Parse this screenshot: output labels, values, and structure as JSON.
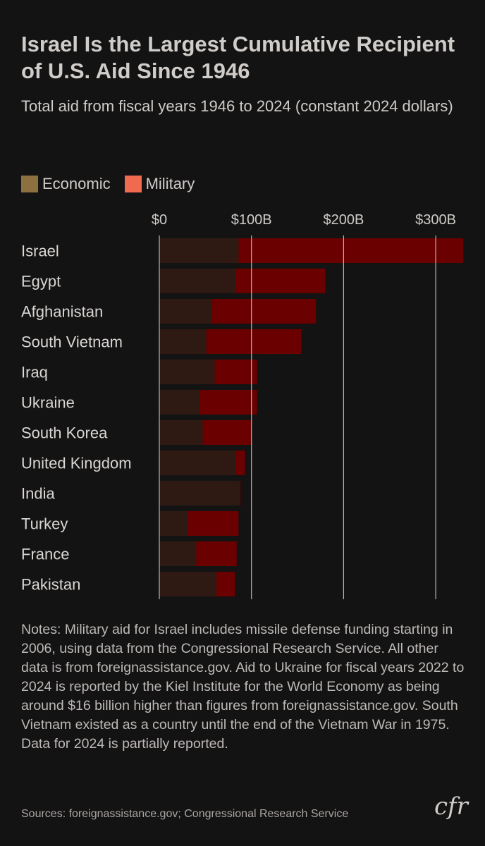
{
  "title": "Israel Is the Largest Cumulative Recipient of U.S. Aid Since 1946",
  "subtitle": "Total aid from fiscal years 1946 to 2024 (constant 2024 dollars)",
  "legend": [
    {
      "label": "Economic",
      "color": "#8c7040"
    },
    {
      "label": "Military",
      "color": "#f06a50"
    }
  ],
  "colors": {
    "economic_bar": "#2e1a12",
    "military_bar": "#6b0000",
    "grid": "#b8b4b0"
  },
  "chart_data": {
    "type": "bar",
    "orientation": "horizontal",
    "stacked": true,
    "categories": [
      "Israel",
      "Egypt",
      "Afghanistan",
      "South Vietnam",
      "Iraq",
      "Ukraine",
      "South Korea",
      "United Kingdom",
      "India",
      "Turkey",
      "France",
      "Pakistan"
    ],
    "series": [
      {
        "name": "Economic",
        "values": [
          86,
          83,
          57,
          51,
          60,
          44,
          47,
          83,
          87,
          31,
          40,
          62
        ]
      },
      {
        "name": "Military",
        "values": [
          244,
          97,
          113,
          103,
          46,
          62,
          53,
          10,
          1,
          55,
          44,
          20
        ]
      }
    ],
    "xlim": [
      0,
      330
    ],
    "xticks": [
      0,
      100,
      200,
      300
    ],
    "xtick_labels": [
      "$0",
      "$100B",
      "$200B",
      "$300B"
    ],
    "grid": true
  },
  "notes": "Notes: Military aid for Israel includes missile defense funding starting in 2006, using data from the Congressional Research Service. All other data is from foreignassistance.gov. Aid to Ukraine for fiscal years 2022 to 2024 is reported by the Kiel Institute for the World Economy as being around $16 billion higher than figures from foreignassistance.gov. South Vietnam existed as a country until the end of the Vietnam War in 1975. Data for 2024 is partially reported.",
  "sources": "Sources: foreignassistance.gov; Congressional Research Service",
  "logo": "cfr"
}
